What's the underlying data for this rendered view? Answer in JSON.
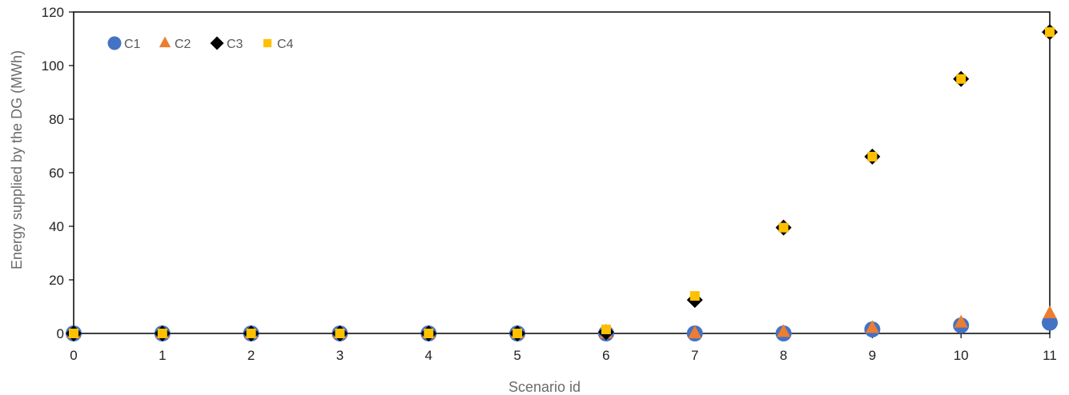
{
  "chart_data": {
    "type": "scatter",
    "title": "",
    "xlabel": "Scenario id",
    "ylabel": "Energy supplied by the DG (MWh)",
    "xlim": [
      0,
      11
    ],
    "ylim": [
      0,
      120
    ],
    "xticks": [
      0,
      1,
      2,
      3,
      4,
      5,
      6,
      7,
      8,
      9,
      10,
      11
    ],
    "yticks": [
      0,
      20,
      40,
      60,
      80,
      100,
      120
    ],
    "grid": false,
    "legend_position": "top-left",
    "x": [
      0,
      1,
      2,
      3,
      4,
      5,
      6,
      7,
      8,
      9,
      10,
      11
    ],
    "series": [
      {
        "name": "C1",
        "marker": "circle",
        "color": "#4472C4",
        "values": [
          0,
          0,
          0,
          0,
          0,
          0,
          0,
          0,
          0,
          1.5,
          3,
          4
        ]
      },
      {
        "name": "C2",
        "marker": "triangle",
        "color": "#ED7D31",
        "values": [
          0,
          0,
          0,
          0,
          0,
          0,
          0,
          0,
          0.5,
          2,
          4,
          7.5
        ]
      },
      {
        "name": "C3",
        "marker": "diamond",
        "color": "#000000",
        "values": [
          0,
          0,
          0,
          0,
          0,
          0,
          0.5,
          12.5,
          39.5,
          66,
          95,
          112.5
        ]
      },
      {
        "name": "C4",
        "marker": "square",
        "color": "#FFC000",
        "values": [
          0,
          0,
          0,
          0,
          0,
          0,
          1.5,
          14,
          39.5,
          66,
          95,
          112.5
        ]
      }
    ]
  }
}
